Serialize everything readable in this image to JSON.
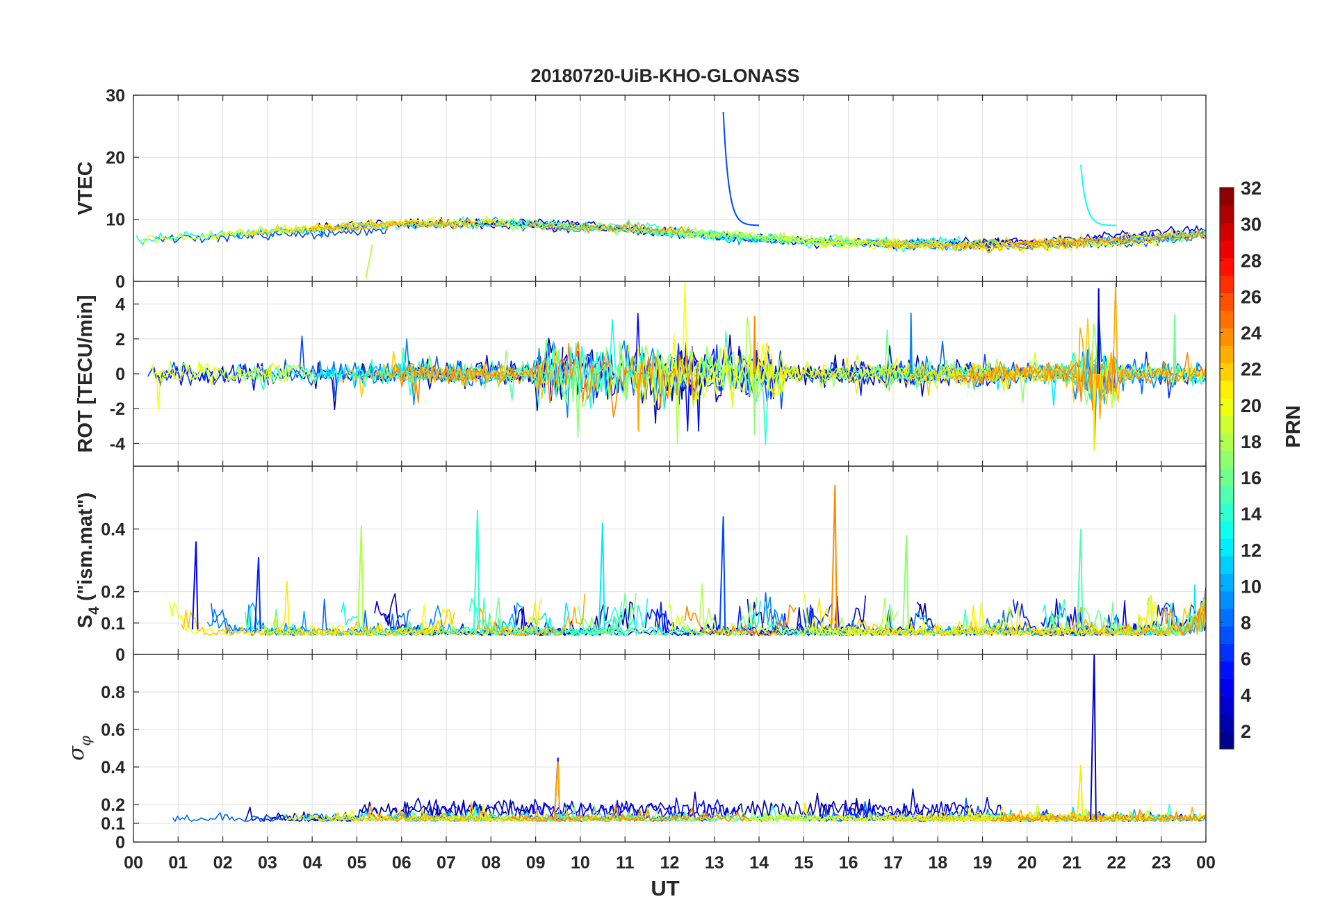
{
  "chart_data": {
    "type": "line",
    "title": "20180720-UiB-KHO-GLONASS",
    "xlabel": "UT",
    "x_range_hours": [
      0,
      24
    ],
    "x_tick_labels": [
      "00",
      "01",
      "02",
      "03",
      "04",
      "05",
      "06",
      "07",
      "08",
      "09",
      "10",
      "11",
      "12",
      "13",
      "14",
      "15",
      "16",
      "17",
      "18",
      "19",
      "20",
      "21",
      "22",
      "23",
      "00"
    ],
    "grid": true,
    "colorbar": {
      "label": "PRN",
      "range": [
        1,
        32
      ],
      "tick_labels": [
        "2",
        "4",
        "6",
        "8",
        "10",
        "12",
        "14",
        "16",
        "18",
        "20",
        "22",
        "24",
        "26",
        "28",
        "30",
        "32"
      ],
      "colormap": "jet"
    },
    "panels": [
      {
        "id": "vtec",
        "ylabel": "VTEC",
        "ylim": [
          0,
          30
        ],
        "y_ticks": [
          0,
          10,
          20,
          30
        ],
        "base_range": [
          6,
          10
        ],
        "events": [
          {
            "prn": 7,
            "x": 13.2,
            "peak": 27.3,
            "note": "decaying spike"
          },
          {
            "prn": 13,
            "x": 21.2,
            "peak": 18.8,
            "note": "decaying spike"
          },
          {
            "prn": 18,
            "x": 5.2,
            "peak": 0.5,
            "note": "track start dip"
          }
        ]
      },
      {
        "id": "rot",
        "ylabel": "ROT [TECU/min]",
        "ylim": [
          -5.3,
          5.3
        ],
        "y_ticks": [
          -4,
          -2,
          0,
          2,
          4
        ],
        "events": [
          {
            "prn": 24,
            "x": 13.9,
            "value": 3.3
          },
          {
            "prn": 23,
            "x": 11.3,
            "value": -3.3
          },
          {
            "prn": 17,
            "x": 13.9,
            "value": -3.5
          },
          {
            "prn": 3,
            "x": 21.6,
            "value": 4.9
          },
          {
            "prn": 21,
            "x": 21.5,
            "value": -4.4
          },
          {
            "prn": 16,
            "x": 23.3,
            "value": 3.4
          },
          {
            "prn": 9,
            "x": 17.4,
            "value": 3.5
          }
        ]
      },
      {
        "id": "s4",
        "ylabel": "S4 (\"ism.mat\")",
        "ylabel_main": "S",
        "ylabel_sub": "4",
        "ylabel_rest": " (\"ism.mat\")",
        "ylim": [
          0,
          0.6
        ],
        "y_ticks": [
          0,
          0.1,
          0.2,
          0.4
        ],
        "y_tick_labels": [
          "0",
          "0.1",
          "0.2",
          "0.4"
        ],
        "events": [
          {
            "prn": 5,
            "x": 1.4,
            "peak": 0.36
          },
          {
            "prn": 6,
            "x": 2.8,
            "peak": 0.31
          },
          {
            "prn": 18,
            "x": 5.1,
            "peak": 0.41
          },
          {
            "prn": 14,
            "x": 7.7,
            "peak": 0.46
          },
          {
            "prn": 12,
            "x": 10.5,
            "peak": 0.42
          },
          {
            "prn": 7,
            "x": 13.2,
            "peak": 0.44
          },
          {
            "prn": 24,
            "x": 15.7,
            "peak": 0.54
          },
          {
            "prn": 17,
            "x": 17.3,
            "peak": 0.38
          },
          {
            "prn": 15,
            "x": 21.2,
            "peak": 0.4
          }
        ]
      },
      {
        "id": "sigma_phi",
        "ylabel": "σ φ",
        "ylabel_main": "σ",
        "ylabel_sub": "φ",
        "ylim": [
          0,
          1
        ],
        "y_ticks": [
          0,
          0.1,
          0.2,
          0.4,
          0.6,
          0.8
        ],
        "y_tick_labels": [
          "0",
          "0.1",
          "0.2",
          "0.4",
          "0.6",
          "0.8"
        ],
        "events": [
          {
            "prn": 3,
            "x": 21.5,
            "peak": 1.0
          },
          {
            "prn": 5,
            "x": 9.5,
            "peak": 0.45
          },
          {
            "prn": 23,
            "x": 9.5,
            "peak": 0.43
          },
          {
            "prn": 21,
            "x": 21.2,
            "peak": 0.41
          }
        ]
      }
    ]
  }
}
